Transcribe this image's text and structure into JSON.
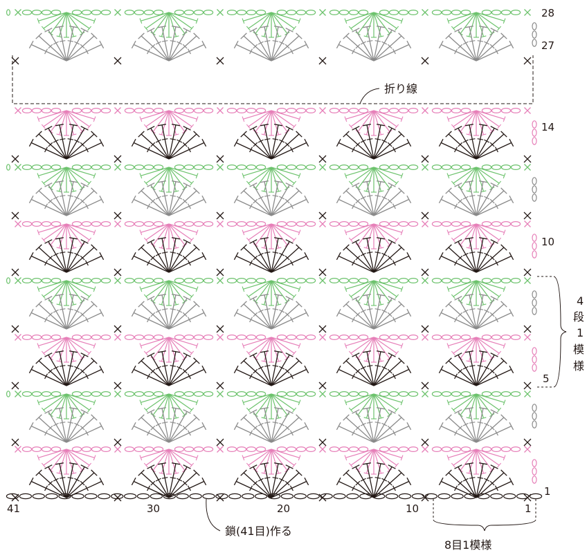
{
  "row_labels": [
    {
      "row": 28,
      "text": "28"
    },
    {
      "row": 27,
      "text": "27"
    },
    {
      "row": 14,
      "text": "14"
    },
    {
      "row": 10,
      "text": "10"
    },
    {
      "row": 1,
      "text": "1"
    }
  ],
  "stitch_count_labels": [
    "41",
    "30",
    "20",
    "10",
    "1"
  ],
  "fold_line_label": "折り線",
  "foundation_label": "鎖(41目)作る",
  "repeat_rows_label": [
    "4",
    "段",
    "1",
    "模",
    "様"
  ],
  "repeat_stitches_label": "8目1模様",
  "row5_label": "5",
  "colors": {
    "pink": "#e67fb8",
    "green": "#6cc26c",
    "gray": "#8a8a8a",
    "black": "#231815"
  },
  "symbols": {
    "single_crochet": "×",
    "chain": "oval",
    "treble_fan": "fan"
  }
}
